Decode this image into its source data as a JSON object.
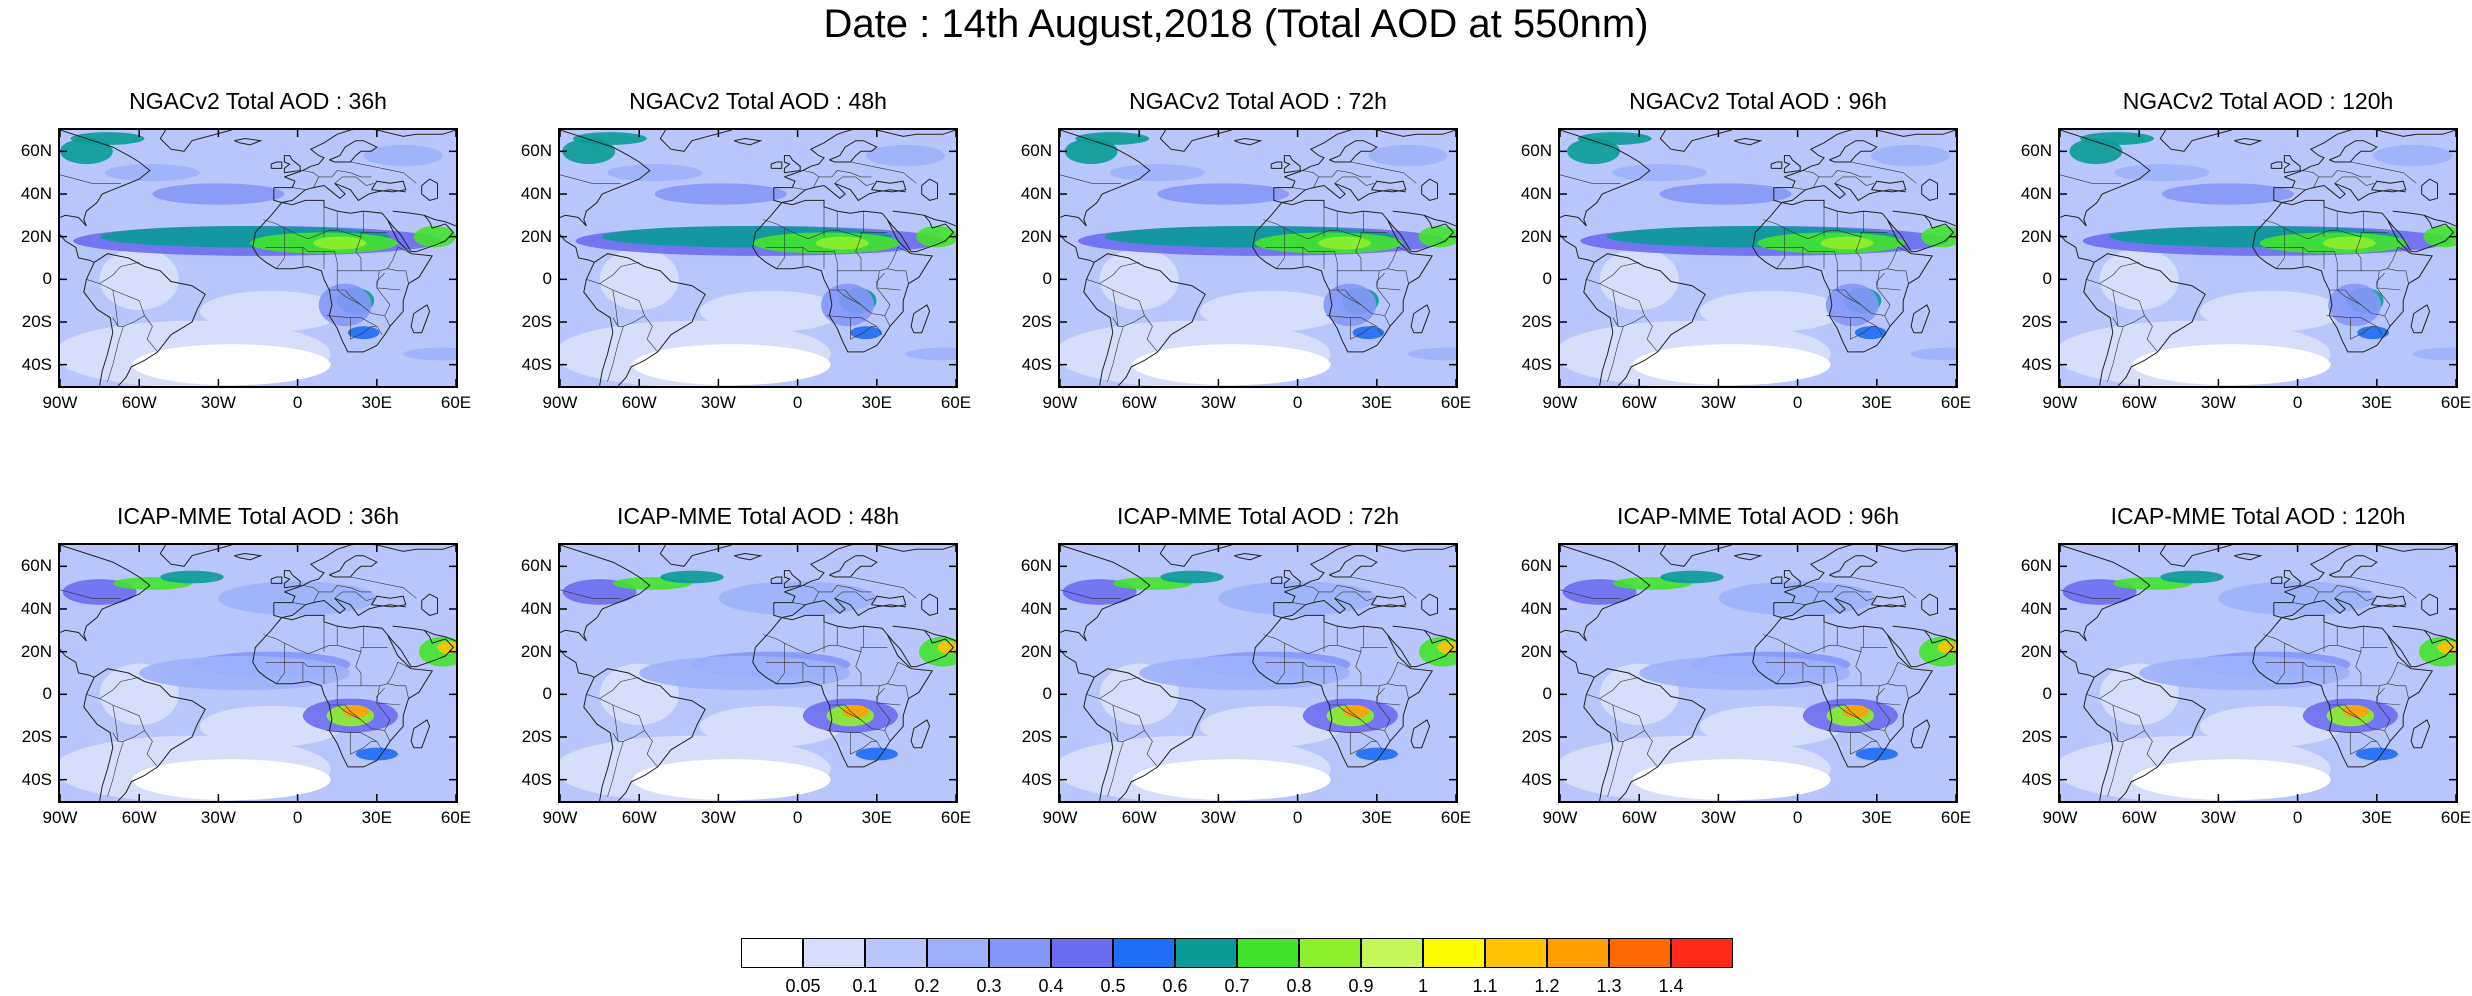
{
  "title": "Date : 14th August,2018 (Total AOD at 550nm)",
  "panels": [
    {
      "title": "NGACv2 Total AOD : 36h"
    },
    {
      "title": "NGACv2 Total AOD : 48h"
    },
    {
      "title": "NGACv2 Total AOD : 72h"
    },
    {
      "title": "NGACv2 Total AOD : 96h"
    },
    {
      "title": "NGACv2 Total AOD : 120h"
    },
    {
      "title": "ICAP-MME Total AOD : 36h"
    },
    {
      "title": "ICAP-MME Total AOD : 48h"
    },
    {
      "title": "ICAP-MME Total AOD : 72h"
    },
    {
      "title": "ICAP-MME Total AOD : 96h"
    },
    {
      "title": "ICAP-MME Total AOD : 120h"
    }
  ],
  "lat_ticks": [
    "60N",
    "40N",
    "20N",
    "0",
    "20S",
    "40S"
  ],
  "lon_ticks": [
    "90W",
    "60W",
    "30W",
    "0",
    "30E",
    "60E"
  ],
  "colorbar": {
    "labels": [
      "0.05",
      "0.1",
      "0.2",
      "0.3",
      "0.4",
      "0.5",
      "0.6",
      "0.7",
      "0.8",
      "0.9",
      "1",
      "1.1",
      "1.2",
      "1.3",
      "1.4"
    ],
    "colors": [
      "#ffffff",
      "#d6defc",
      "#b8c6fb",
      "#9db1fa",
      "#8497f6",
      "#6b6cf0",
      "#1f6cf5",
      "#0a9b97",
      "#42e32c",
      "#8ef02c",
      "#c5f65a",
      "#fffb00",
      "#ffc300",
      "#ff9e00",
      "#ff6a00",
      "#ff2a1a"
    ]
  },
  "chart_data": {
    "type": "heatmap",
    "variable": "Total AOD at 550nm",
    "date": "14th August,2018",
    "lon_range": [
      -90,
      60
    ],
    "lat_range": [
      -50,
      70
    ],
    "rows": [
      "NGACv2",
      "ICAP-MME"
    ],
    "forecast_hours": [
      "36h",
      "48h",
      "72h",
      "96h",
      "120h"
    ],
    "levels": [
      0.05,
      0.1,
      0.2,
      0.3,
      0.4,
      0.5,
      0.6,
      0.7,
      0.8,
      0.9,
      1,
      1.1,
      1.2,
      1.3,
      1.4
    ]
  }
}
